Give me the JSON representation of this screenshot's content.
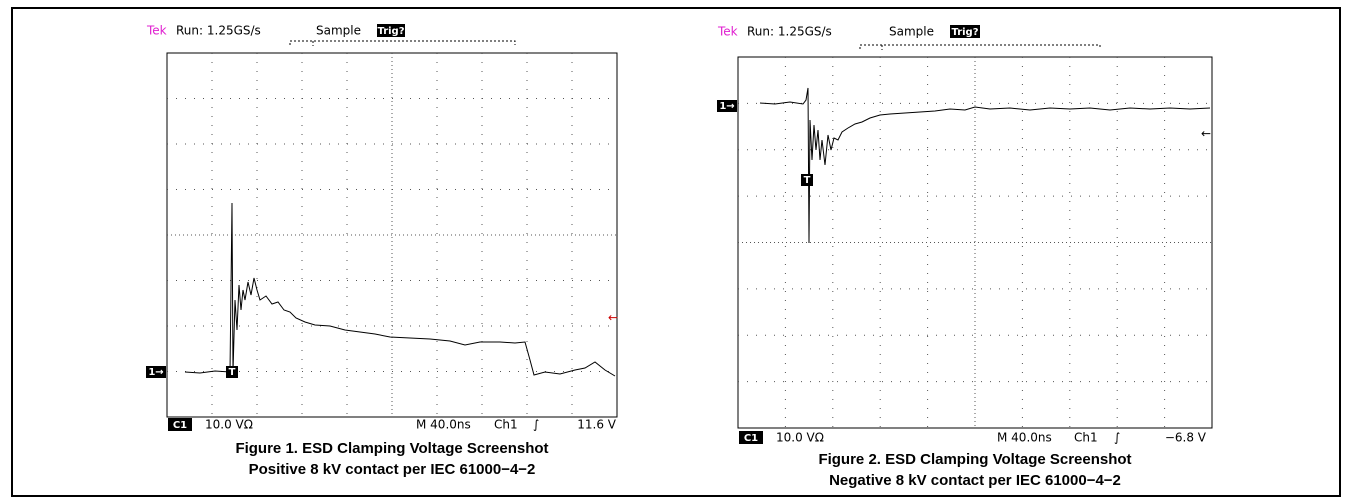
{
  "figures": [
    {
      "header": {
        "brand": "Tek",
        "status": "Run: 1.25GS/s",
        "mode": "Sample",
        "trig": "Trig?"
      },
      "markers": {
        "channel": "1→",
        "trigger": "T",
        "level": "←"
      },
      "footer": {
        "channel": "C1",
        "scale": "10.0 VΩ",
        "timebase": "M 40.0ns",
        "source": "Ch1",
        "slope": "∫",
        "level": "11.6 V"
      },
      "caption": [
        "Figure 1. ESD Clamping Voltage Screenshot",
        "Positive 8 kV contact per IEC 61000−4−2"
      ]
    },
    {
      "header": {
        "brand": "Tek",
        "status": "Run: 1.25GS/s",
        "mode": "Sample",
        "trig": "Trig?"
      },
      "markers": {
        "channel": "1→",
        "trigger": "T",
        "level": "←"
      },
      "footer": {
        "channel": "C1",
        "scale": "10.0 VΩ",
        "timebase": "M 40.0ns",
        "source": "Ch1",
        "slope": "∫",
        "level": "−6.8 V"
      },
      "caption": [
        "Figure 2. ESD Clamping Voltage Screenshot",
        "Negative 8 kV contact per IEC 61000−4−2"
      ]
    }
  ]
}
